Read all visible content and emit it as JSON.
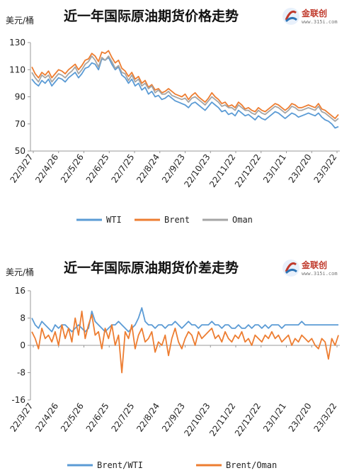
{
  "chart_data": [
    {
      "type": "line",
      "title": "近一年国际原油期货价格走势",
      "unit_label": "美元/桶",
      "ylim": [
        50,
        130
      ],
      "yticks": [
        50,
        70,
        90,
        110,
        130
      ],
      "x_tick_labels": [
        "22/3/27",
        "22/4/26",
        "22/5/26",
        "22/6/25",
        "22/7/25",
        "22/8/24",
        "22/9/23",
        "22/10/23",
        "22/11/22",
        "22/12/22",
        "23/1/21",
        "23/2/20",
        "23/3/22"
      ],
      "legend_position": "bottom",
      "grid": false,
      "series": [
        {
          "name": "WTI",
          "color": "#5b9bd5",
          "values": [
            103,
            100,
            98,
            102,
            100,
            103,
            98,
            101,
            104,
            103,
            101,
            104,
            106,
            108,
            104,
            107,
            111,
            112,
            115,
            114,
            110,
            118,
            117,
            119,
            114,
            110,
            112,
            106,
            104,
            100,
            103,
            98,
            100,
            95,
            97,
            92,
            94,
            90,
            91,
            88,
            89,
            91,
            89,
            87,
            86,
            85,
            84,
            82,
            85,
            86,
            84,
            82,
            80,
            83,
            86,
            84,
            82,
            79,
            80,
            77,
            78,
            76,
            80,
            78,
            76,
            77,
            75,
            73,
            76,
            74,
            73,
            75,
            77,
            79,
            78,
            76,
            74,
            76,
            78,
            77,
            75,
            76,
            77,
            78,
            77,
            76,
            78,
            75,
            73,
            72,
            70,
            67,
            68
          ]
        },
        {
          "name": "Brent",
          "color": "#ed7d31",
          "values": [
            112,
            107,
            104,
            108,
            106,
            109,
            104,
            107,
            110,
            109,
            107,
            110,
            112,
            114,
            110,
            113,
            117,
            118,
            122,
            120,
            116,
            123,
            122,
            124,
            119,
            115,
            117,
            111,
            109,
            105,
            108,
            103,
            105,
            100,
            102,
            97,
            99,
            95,
            96,
            93,
            94,
            96,
            94,
            92,
            91,
            90,
            92,
            88,
            91,
            93,
            90,
            88,
            86,
            89,
            93,
            90,
            88,
            85,
            86,
            83,
            84,
            82,
            86,
            84,
            81,
            82,
            80,
            79,
            82,
            80,
            79,
            81,
            83,
            85,
            84,
            82,
            80,
            82,
            85,
            84,
            82,
            82,
            83,
            84,
            83,
            82,
            85,
            81,
            80,
            78,
            76,
            74,
            77
          ]
        },
        {
          "name": "Oman",
          "color": "#a5a5a5",
          "values": [
            108,
            104,
            101,
            106,
            104,
            106,
            101,
            104,
            107,
            106,
            104,
            107,
            109,
            112,
            107,
            110,
            114,
            116,
            120,
            117,
            112,
            119,
            117,
            120,
            116,
            111,
            113,
            108,
            107,
            102,
            106,
            101,
            103,
            98,
            100,
            96,
            98,
            93,
            95,
            92,
            92,
            94,
            91,
            90,
            89,
            88,
            89,
            86,
            89,
            90,
            88,
            86,
            84,
            87,
            90,
            88,
            86,
            83,
            84,
            82,
            82,
            80,
            84,
            82,
            80,
            80,
            78,
            77,
            80,
            78,
            77,
            79,
            81,
            83,
            82,
            80,
            78,
            80,
            83,
            82,
            80,
            80,
            81,
            82,
            81,
            80,
            83,
            79,
            78,
            76,
            74,
            72,
            74
          ]
        }
      ]
    },
    {
      "type": "line",
      "title": "近一年国际原油期货价差走势",
      "unit_label": "美元/桶",
      "ylim": [
        -16,
        16
      ],
      "yticks": [
        -16,
        -8,
        0,
        8,
        16
      ],
      "x_tick_labels": [
        "22/3/27",
        "22/4/26",
        "22/5/26",
        "22/6/25",
        "22/7/25",
        "22/8/24",
        "22/9/23",
        "22/10/23",
        "22/11/22",
        "22/12/22",
        "23/1/21",
        "23/2/20",
        "23/3/22"
      ],
      "legend_position": "bottom",
      "grid": false,
      "series": [
        {
          "name": "Brent/WTI",
          "color": "#5b9bd5",
          "values": [
            8,
            6,
            5,
            7,
            6,
            5,
            4,
            6,
            5,
            6,
            6,
            5,
            4,
            5,
            6,
            5,
            4,
            5,
            10,
            7,
            6,
            5,
            4,
            5,
            6,
            6,
            7,
            6,
            5,
            4,
            5,
            6,
            8,
            11,
            7,
            6,
            6,
            5,
            6,
            6,
            5,
            6,
            6,
            7,
            6,
            5,
            6,
            7,
            6,
            6,
            5,
            6,
            6,
            6,
            7,
            6,
            6,
            5,
            6,
            6,
            5,
            5,
            6,
            5,
            5,
            6,
            5,
            6,
            6,
            5,
            6,
            5,
            6,
            6,
            6,
            5,
            6,
            6,
            6,
            6,
            6,
            7,
            6,
            6,
            6,
            6,
            6,
            6,
            6,
            6,
            6,
            6,
            6
          ]
        },
        {
          "name": "Brent/Oman",
          "color": "#ed7d31",
          "values": [
            4,
            2,
            -1,
            5,
            2,
            3,
            1,
            4,
            0,
            6,
            2,
            5,
            1,
            8,
            3,
            10,
            2,
            6,
            9,
            3,
            4,
            -1,
            5,
            2,
            6,
            0,
            3,
            -8,
            4,
            2,
            6,
            -1,
            3,
            5,
            1,
            2,
            4,
            -2,
            1,
            0,
            3,
            -3,
            2,
            5,
            1,
            -1,
            2,
            4,
            3,
            0,
            4,
            2,
            3,
            4,
            5,
            2,
            3,
            1,
            4,
            2,
            1,
            3,
            2,
            4,
            1,
            2,
            0,
            3,
            2,
            1,
            3,
            2,
            4,
            2,
            3,
            1,
            2,
            3,
            0,
            2,
            1,
            3,
            2,
            1,
            2,
            0,
            -1,
            2,
            1,
            -4,
            2,
            0,
            3
          ]
        }
      ]
    }
  ],
  "logo": {
    "name": "金联创",
    "subtext": "www.315i.com"
  }
}
